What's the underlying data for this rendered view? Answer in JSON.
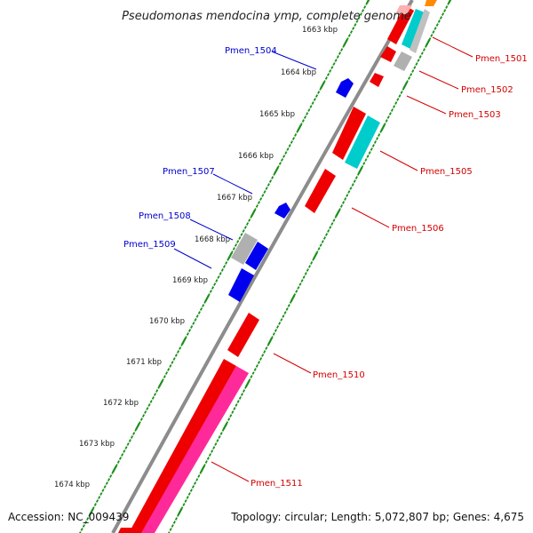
{
  "title": "Pseudomonas mendocina ymp, complete genome",
  "footer": {
    "accession": "Accession: NC_009439",
    "summary": "Topology: circular; Length: 5,072,807 bp; Genes: 4,675"
  },
  "colors": {
    "backbone": "#8c8c8c",
    "dotted_tick": "#1a8f1a",
    "forward_gene": "#0000ee",
    "reverse_gene": "#ee0000",
    "rna_gene": "#00cccc",
    "pseudo_gene": "#ff2a9a",
    "other_gene": "#b0b0b0",
    "orange_gene": "#ff8c00"
  },
  "kbp_ticks": [
    "1663 kbp",
    "1664 kbp",
    "1665 kbp",
    "1666 kbp",
    "1667 kbp",
    "1668 kbp",
    "1669 kbp",
    "1670 kbp",
    "1671 kbp",
    "1672 kbp",
    "1673 kbp",
    "1674 kbp"
  ],
  "labels_left": [
    "Pmen_1504",
    "Pmen_1507",
    "Pmen_1508",
    "Pmen_1509"
  ],
  "labels_right": [
    "Pmen_1501",
    "Pmen_1502",
    "Pmen_1503",
    "Pmen_1505",
    "Pmen_1506",
    "Pmen_1510",
    "Pmen_1511"
  ]
}
